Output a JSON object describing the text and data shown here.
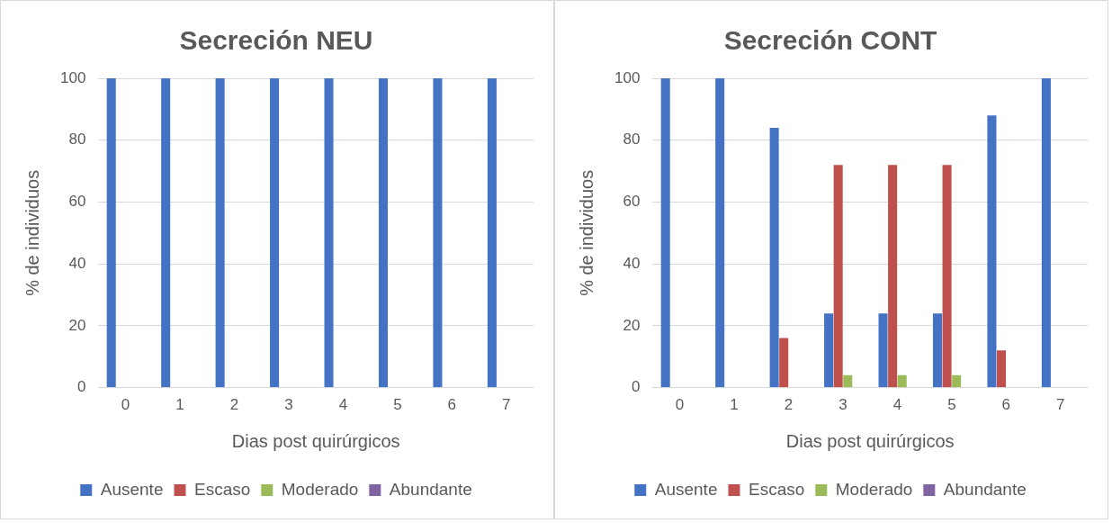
{
  "chart_data": [
    {
      "type": "bar",
      "title": "Secreción NEU",
      "xlabel": "Dias post quirúrgicos",
      "ylabel": "% de individuos",
      "categories": [
        "0",
        "1",
        "2",
        "3",
        "4",
        "5",
        "6",
        "7"
      ],
      "series": [
        {
          "name": "Ausente",
          "color": "#4472c4",
          "values": [
            100,
            100,
            100,
            100,
            100,
            100,
            100,
            100
          ]
        },
        {
          "name": "Escaso",
          "color": "#c0504d",
          "values": [
            0,
            0,
            0,
            0,
            0,
            0,
            0,
            0
          ]
        },
        {
          "name": "Moderado",
          "color": "#9bbb59",
          "values": [
            0,
            0,
            0,
            0,
            0,
            0,
            0,
            0
          ]
        },
        {
          "name": "Abundante",
          "color": "#8064a2",
          "values": [
            0,
            0,
            0,
            0,
            0,
            0,
            0,
            0
          ]
        }
      ],
      "ylim": [
        0,
        100
      ],
      "yticks": [
        0,
        20,
        40,
        60,
        80,
        100
      ],
      "grid": "y",
      "legend": "bottom"
    },
    {
      "type": "bar",
      "title": "Secreción CONT",
      "xlabel": "Dias post quirúrgicos",
      "ylabel": "% de individuos",
      "categories": [
        "0",
        "1",
        "2",
        "3",
        "4",
        "5",
        "6",
        "7"
      ],
      "series": [
        {
          "name": "Ausente",
          "color": "#4472c4",
          "values": [
            100,
            100,
            84,
            24,
            24,
            24,
            88,
            100
          ]
        },
        {
          "name": "Escaso",
          "color": "#c0504d",
          "values": [
            0,
            0,
            16,
            72,
            72,
            72,
            12,
            0
          ]
        },
        {
          "name": "Moderado",
          "color": "#9bbb59",
          "values": [
            0,
            0,
            0,
            4,
            4,
            4,
            0,
            0
          ]
        },
        {
          "name": "Abundante",
          "color": "#8064a2",
          "values": [
            0,
            0,
            0,
            0,
            0,
            0,
            0,
            0
          ]
        }
      ],
      "ylim": [
        0,
        100
      ],
      "yticks": [
        0,
        20,
        40,
        60,
        80,
        100
      ],
      "grid": "y",
      "legend": "bottom"
    }
  ]
}
